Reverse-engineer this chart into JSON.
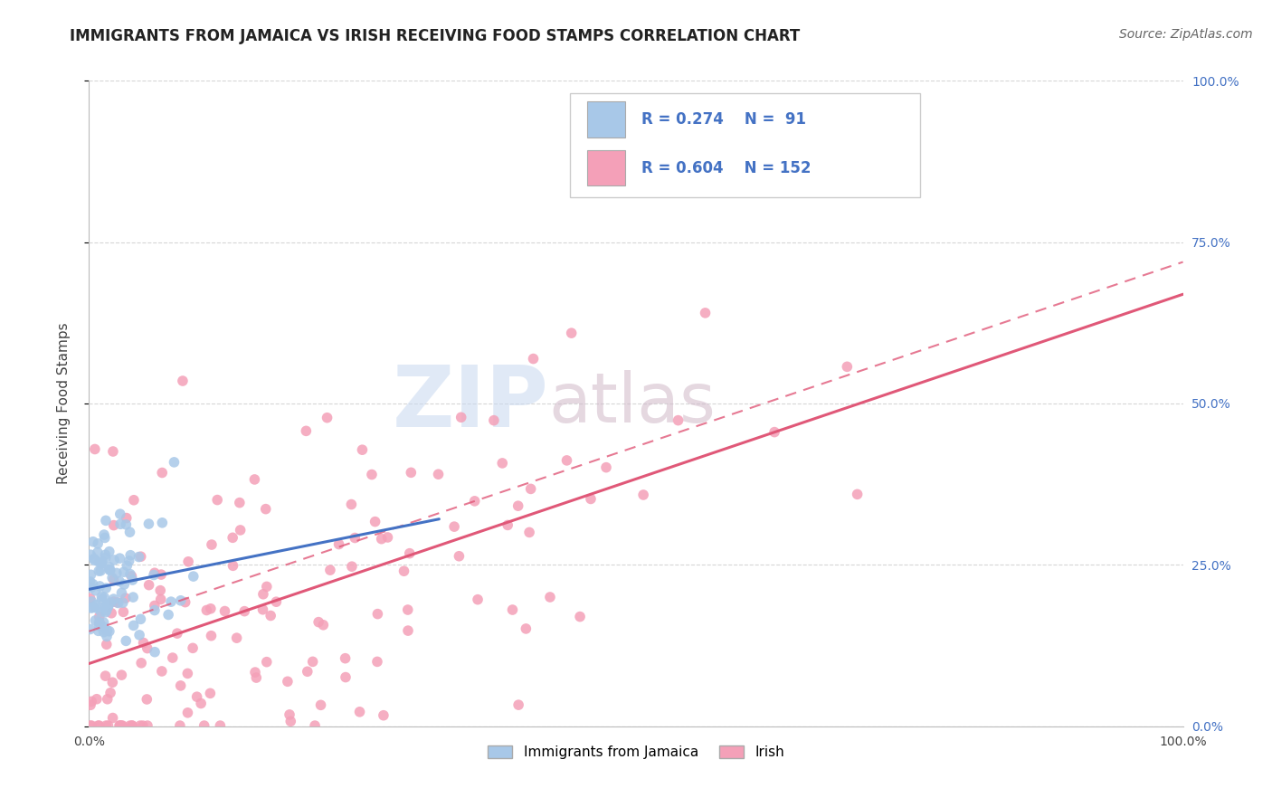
{
  "title": "IMMIGRANTS FROM JAMAICA VS IRISH RECEIVING FOOD STAMPS CORRELATION CHART",
  "source": "Source: ZipAtlas.com",
  "ylabel": "Receiving Food Stamps",
  "y_tick_labels_right": [
    "0.0%",
    "25.0%",
    "50.0%",
    "75.0%",
    "100.0%"
  ],
  "y_tick_positions": [
    0.0,
    0.25,
    0.5,
    0.75,
    1.0
  ],
  "x_tick_labels": [
    "0.0%",
    "100.0%"
  ],
  "x_tick_positions": [
    0.0,
    1.0
  ],
  "legend_labels": [
    "Immigrants from Jamaica",
    "Irish"
  ],
  "legend_r_jamaica": "R = 0.274",
  "legend_n_jamaica": "N =  91",
  "legend_r_irish": "R = 0.604",
  "legend_n_irish": "N = 152",
  "color_jamaica": "#a8c8e8",
  "color_irish": "#f4a0b8",
  "color_trendline_jamaica": "#4472c4",
  "color_trendline_irish": "#e05878",
  "background_color": "#ffffff",
  "watermark_zip": "ZIP",
  "watermark_atlas": "atlas",
  "watermark_color_zip": "#c8d8f0",
  "watermark_color_atlas": "#d0b8c8",
  "title_fontsize": 12,
  "source_fontsize": 10,
  "axis_label_fontsize": 11,
  "tick_fontsize": 10,
  "right_tick_color": "#4472c4"
}
